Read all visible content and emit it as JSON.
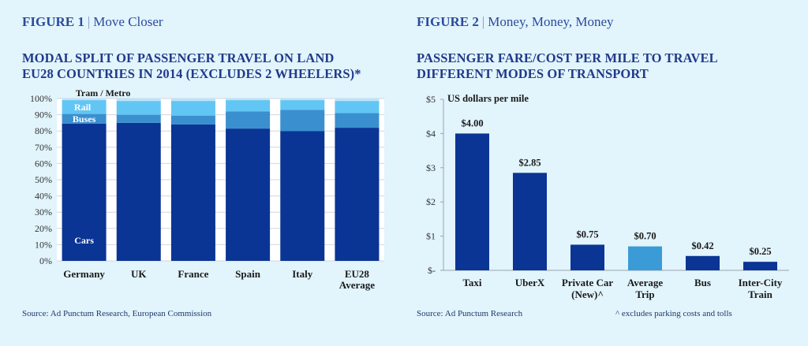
{
  "figure1": {
    "label": "FIGURE 1",
    "separator": "|",
    "name": "Move Closer",
    "title_line1": "MODAL SPLIT OF PASSENGER TRAVEL ON LAND",
    "title_line2": "EU28 COUNTRIES IN 2014 (EXCLUDES 2 WHEELERS)*",
    "source": "Source: Ad Punctum Research, European Commission"
  },
  "figure2": {
    "label": "FIGURE 2",
    "separator": "|",
    "name": "Money, Money, Money",
    "title_line1": "PASSENGER FARE/COST PER MILE TO TRAVEL",
    "title_line2": "DIFFERENT MODES OF TRANSPORT",
    "source": "Source: Ad Punctum Research",
    "footnote": "^ excludes parking costs and tolls"
  },
  "colors": {
    "cars": "#0a3595",
    "buses": "#3a8fcf",
    "rail": "#62c6f4",
    "tram": "#b9e5f9",
    "bar_primary": "#0a3595",
    "bar_highlight": "#3a9bd6",
    "title": "#1f3a8a"
  },
  "chart_data": [
    {
      "type": "bar",
      "stacked": true,
      "categories": [
        "Germany",
        "UK",
        "France",
        "Spain",
        "Italy",
        "EU28 Average"
      ],
      "category_lines": [
        [
          "Germany"
        ],
        [
          "UK"
        ],
        [
          "France"
        ],
        [
          "Spain"
        ],
        [
          "Italy"
        ],
        [
          "EU28",
          "Average"
        ]
      ],
      "series": [
        {
          "name": "Cars",
          "values": [
            84.5,
            85,
            84,
            81.5,
            80,
            82
          ]
        },
        {
          "name": "Buses",
          "values": [
            6,
            5,
            5.5,
            10.5,
            13,
            9
          ]
        },
        {
          "name": "Rail",
          "values": [
            8.5,
            8.5,
            9,
            7,
            6,
            7.5
          ]
        },
        {
          "name": "Tram / Metro",
          "values": [
            1,
            1.5,
            1.5,
            1,
            1,
            1.5
          ]
        }
      ],
      "ylim": [
        0,
        100
      ],
      "yticks": [
        "0%",
        "10%",
        "20%",
        "30%",
        "40%",
        "50%",
        "60%",
        "70%",
        "80%",
        "90%",
        "100%"
      ],
      "grid": true,
      "legend": "labels inside first bar"
    },
    {
      "type": "bar",
      "categories": [
        "Taxi",
        "UberX",
        "Private Car (New)^",
        "Average Trip",
        "Bus",
        "Inter-City Train"
      ],
      "category_lines": [
        [
          "Taxi"
        ],
        [
          "UberX"
        ],
        [
          "Private Car",
          "(New)^"
        ],
        [
          "Average",
          "Trip"
        ],
        [
          "Bus"
        ],
        [
          "Inter-City",
          "Train"
        ]
      ],
      "values": [
        4.0,
        2.85,
        0.75,
        0.7,
        0.42,
        0.25
      ],
      "value_labels": [
        "$4.00",
        "$2.85",
        "$0.75",
        "$0.70",
        "$0.42",
        "$0.25"
      ],
      "highlight_index": 3,
      "ylabel": "US dollars per mile",
      "ylim": [
        0,
        5
      ],
      "yticks": [
        "$-",
        "$1",
        "$2",
        "$3",
        "$4",
        "$5"
      ],
      "grid": false
    }
  ]
}
